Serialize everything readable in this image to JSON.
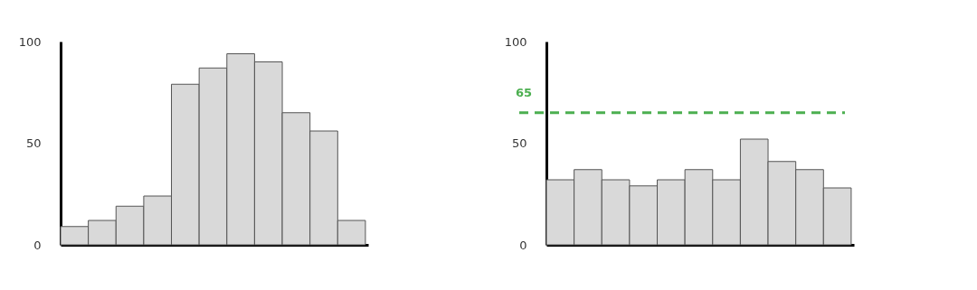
{
  "chart_data": [
    {
      "type": "bar",
      "categories": [
        null,
        null,
        null,
        null,
        null,
        null,
        null,
        null,
        null,
        null,
        null
      ],
      "values": [
        9,
        12,
        19,
        24,
        79,
        87,
        94,
        90,
        65,
        56,
        12
      ],
      "color": "#d9d9d9",
      "ylim": [
        0,
        100
      ],
      "yticks": [
        0,
        50,
        100
      ],
      "grid": false,
      "tick_labels": "y"
    },
    {
      "type": "bar",
      "categories": [
        null,
        null,
        null,
        null,
        null,
        null,
        null,
        null,
        null,
        null,
        null
      ],
      "values": [
        32,
        37,
        32,
        29,
        32,
        37,
        32,
        52,
        41,
        37,
        28
      ],
      "color": "#d9d9d9",
      "ylim": [
        0,
        100
      ],
      "yticks": [
        0,
        50,
        100
      ],
      "grid": false,
      "tick_labels": "y",
      "ref_lines": [
        {
          "axis": "y",
          "value": 65,
          "label": "65",
          "color": "#4caf50",
          "line_style": "dashed"
        }
      ]
    }
  ]
}
